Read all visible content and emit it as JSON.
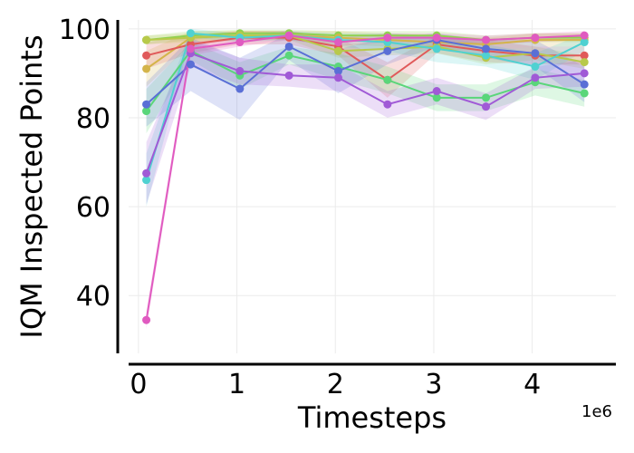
{
  "chart_data": {
    "type": "line",
    "title": "",
    "xlabel": "Timesteps",
    "ylabel": "IQM Inspected Points",
    "x_offset_label": "1e6",
    "xlim": [
      -0.1,
      4.85
    ],
    "ylim": [
      27,
      102
    ],
    "x_ticks": [
      0,
      1,
      2,
      3,
      4
    ],
    "x_tick_labels": [
      "0",
      "1",
      "2",
      "3",
      "4"
    ],
    "y_ticks": [
      40,
      60,
      80,
      100
    ],
    "y_tick_labels": [
      "40",
      "60",
      "80",
      "100"
    ],
    "grid": true,
    "legend": "none",
    "x": [
      0.08,
      0.53,
      1.03,
      1.53,
      2.03,
      2.53,
      3.03,
      3.53,
      4.03,
      4.53
    ],
    "series": [
      {
        "color": "#8fd14f",
        "values": [
          97.5,
          98.5,
          99.0,
          99.0,
          98.5,
          98.5,
          98.5,
          97.5,
          98.0,
          98.0
        ],
        "band": [
          1.0,
          1.0,
          0.8,
          0.8,
          1.0,
          1.0,
          1.0,
          1.0,
          1.0,
          1.0
        ]
      },
      {
        "color": "#d4b44a",
        "values": [
          91.0,
          98.0,
          98.5,
          98.5,
          98.0,
          97.5,
          97.0,
          96.5,
          97.5,
          97.5
        ],
        "band": [
          4.0,
          1.5,
          1.0,
          1.0,
          1.5,
          1.5,
          1.5,
          1.5,
          1.5,
          1.5
        ]
      },
      {
        "color": "#e05a5a",
        "values": [
          94.0,
          96.5,
          98.0,
          98.0,
          96.0,
          88.5,
          96.5,
          95.0,
          94.0,
          94.0
        ],
        "band": [
          3.0,
          2.0,
          1.5,
          1.5,
          2.0,
          4.0,
          2.0,
          2.5,
          2.0,
          2.0
        ]
      },
      {
        "color": "#b8c94a",
        "values": [
          97.5,
          98.0,
          98.5,
          98.5,
          95.0,
          95.5,
          96.0,
          93.5,
          94.5,
          92.5
        ],
        "band": [
          1.0,
          1.0,
          1.0,
          1.0,
          1.5,
          1.5,
          1.5,
          1.5,
          1.5,
          1.5
        ]
      },
      {
        "color": "#4fd1d1",
        "values": [
          66.0,
          99.0,
          98.0,
          98.5,
          97.5,
          97.0,
          95.5,
          94.0,
          91.5,
          97.0
        ],
        "band": [
          6.0,
          1.0,
          1.0,
          1.0,
          1.5,
          2.0,
          3.0,
          2.5,
          3.0,
          2.0
        ]
      },
      {
        "color": "#5ad67a",
        "values": [
          81.5,
          95.0,
          89.5,
          94.0,
          91.5,
          88.5,
          84.5,
          84.5,
          88.0,
          85.5
        ],
        "band": [
          5.0,
          2.0,
          3.0,
          2.0,
          3.0,
          3.0,
          3.0,
          3.0,
          3.0,
          3.0
        ]
      },
      {
        "color": "#5a6fd6",
        "values": [
          83.0,
          92.0,
          86.5,
          96.0,
          90.5,
          95.0,
          97.5,
          95.5,
          94.5,
          87.5
        ],
        "band": [
          5.0,
          6.0,
          7.0,
          3.0,
          5.0,
          3.0,
          1.5,
          2.0,
          3.0,
          4.0
        ]
      },
      {
        "color": "#a05ad6",
        "values": [
          67.5,
          94.5,
          90.5,
          89.5,
          89.0,
          83.0,
          86.0,
          82.5,
          89.0,
          90.0
        ],
        "band": [
          7.0,
          3.0,
          3.0,
          2.5,
          3.0,
          3.0,
          3.0,
          3.0,
          2.5,
          3.0
        ]
      },
      {
        "color": "#e05ac0",
        "values": [
          34.5,
          95.5,
          97.0,
          98.5,
          97.0,
          98.0,
          98.0,
          97.5,
          98.0,
          98.5
        ],
        "band": [
          2.0,
          1.5,
          1.0,
          1.0,
          1.0,
          1.0,
          1.0,
          1.0,
          1.0,
          1.0
        ]
      }
    ]
  }
}
